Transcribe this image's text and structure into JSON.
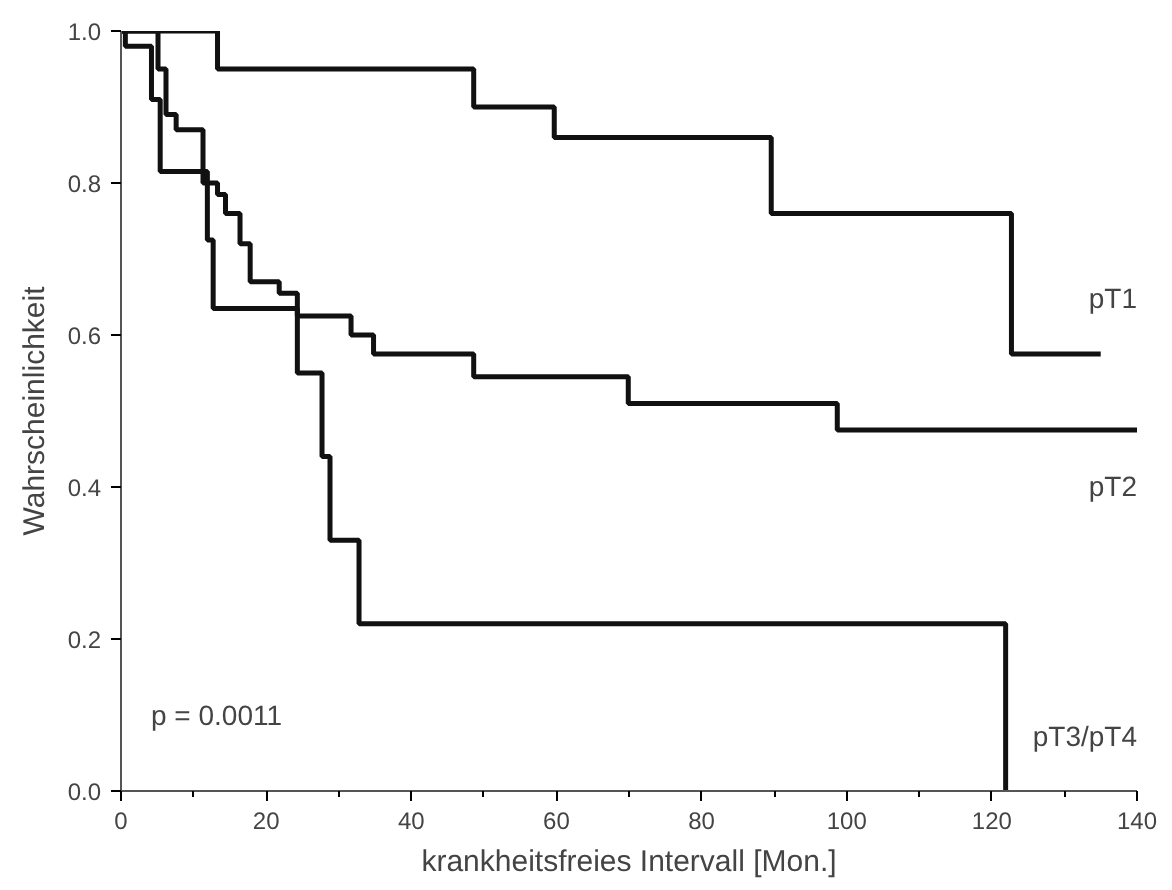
{
  "chart_data": {
    "type": "step",
    "xlabel": "krankheitsfreies Intervall [Mon.]",
    "ylabel": "Wahrscheinlichkeit",
    "xlim": [
      0,
      140
    ],
    "ylim": [
      0,
      1.0
    ],
    "xticks": [
      0,
      {
        "value": 10,
        "label": null
      },
      20,
      {
        "value": 30,
        "label": null
      },
      40,
      {
        "value": 50,
        "label": null
      },
      60,
      {
        "value": 70,
        "label": null
      },
      80,
      {
        "value": 90,
        "label": null
      },
      100,
      {
        "value": 110,
        "label": null
      },
      120,
      {
        "value": 130,
        "label": null
      },
      140
    ],
    "yticks": [
      {
        "value": 0,
        "label": "0.0"
      },
      {
        "value": 0.2,
        "label": "0.2"
      },
      {
        "value": 0.4,
        "label": "0.4"
      },
      {
        "value": 0.6,
        "label": "0.6"
      },
      {
        "value": 0.8,
        "label": "0.8"
      },
      {
        "value": 1.0,
        "label": "1.0"
      }
    ],
    "grid": false,
    "line_style": "solid",
    "marker": "none",
    "series": [
      {
        "name": "pT1",
        "color": "#111111",
        "x": [
          0,
          13.3,
          48.6,
          59.7,
          89.6,
          122.7,
          135
        ],
        "values": [
          1.0,
          0.95,
          0.9,
          0.86,
          0.76,
          0.575,
          0.575
        ]
      },
      {
        "name": "pT2",
        "color": "#111111",
        "x": [
          0,
          5.1,
          6.2,
          7.6,
          11.3,
          13.3,
          14.4,
          16.4,
          17.8,
          21.8,
          24.3,
          31.7,
          34.8,
          48.6,
          69.9,
          98.7,
          140
        ],
        "values": [
          1.0,
          0.95,
          0.89,
          0.87,
          0.8,
          0.785,
          0.76,
          0.72,
          0.67,
          0.655,
          0.625,
          0.6,
          0.575,
          0.545,
          0.51,
          0.475,
          0.475
        ]
      },
      {
        "name": "pT3/pT4",
        "color": "#111111",
        "x": [
          0,
          0.6,
          4.2,
          5.4,
          11.9,
          12.7,
          24.3,
          27.7,
          28.8,
          32.8,
          121.9
        ],
        "values": [
          1.0,
          0.98,
          0.91,
          0.815,
          0.725,
          0.635,
          0.55,
          0.44,
          0.33,
          0.22,
          0.0
        ]
      }
    ],
    "annotations": [
      "p  =  0.0011"
    ]
  }
}
